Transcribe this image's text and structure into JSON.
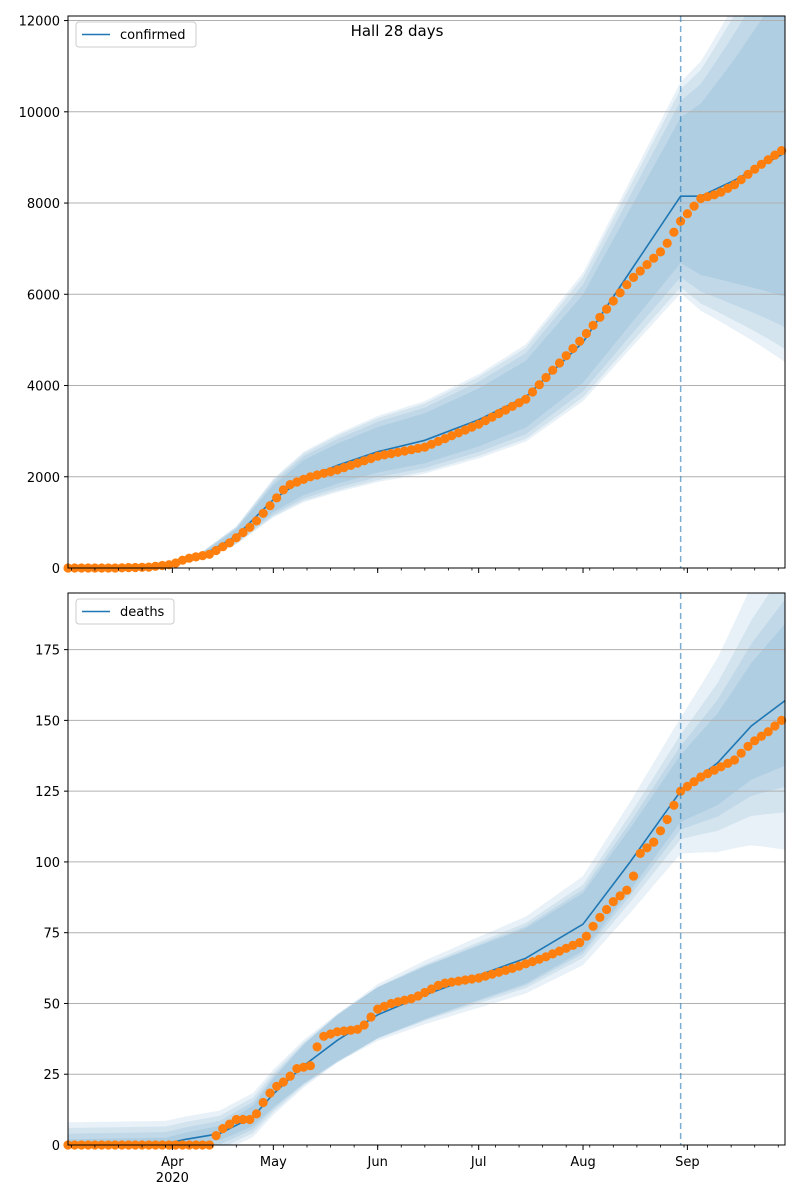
{
  "title": "Hall 28 days",
  "colors": {
    "line": "#1f77b4",
    "points": "#ff7f0e",
    "band": "#1f77b4",
    "grid": "#b0b0b0",
    "vline": "#1f77b4"
  },
  "x_axis": {
    "start": "2020-03-01",
    "end": "2020-09-30",
    "major_ticks": [
      {
        "date": "2020-04-01",
        "label": "Apr",
        "sublabel": "2020"
      },
      {
        "date": "2020-05-01",
        "label": "May",
        "sublabel": ""
      },
      {
        "date": "2020-06-01",
        "label": "Jun",
        "sublabel": ""
      },
      {
        "date": "2020-07-01",
        "label": "Jul",
        "sublabel": ""
      },
      {
        "date": "2020-08-01",
        "label": "Aug",
        "sublabel": ""
      },
      {
        "date": "2020-09-01",
        "label": "Sep",
        "sublabel": ""
      }
    ],
    "minor_tick_interval_days": 7,
    "forecast_start": "2020-08-30"
  },
  "chart_data": [
    {
      "type": "line",
      "legend": "confirmed",
      "legend_position": "top-left",
      "ylim": [
        0,
        12100
      ],
      "yticks": [
        0,
        2000,
        4000,
        6000,
        8000,
        10000,
        12000
      ],
      "grid": "horizontal",
      "bands_ratio": [
        0.96,
        0.9,
        0.8,
        0.66
      ],
      "model": [
        {
          "date": "2020-03-01",
          "y": 0
        },
        {
          "date": "2020-03-15",
          "y": 5
        },
        {
          "date": "2020-03-25",
          "y": 40
        },
        {
          "date": "2020-04-01",
          "y": 100
        },
        {
          "date": "2020-04-10",
          "y": 280
        },
        {
          "date": "2020-04-20",
          "y": 700
        },
        {
          "date": "2020-05-01",
          "y": 1500
        },
        {
          "date": "2020-05-10",
          "y": 1950
        },
        {
          "date": "2020-05-20",
          "y": 2250
        },
        {
          "date": "2020-06-01",
          "y": 2550
        },
        {
          "date": "2020-06-15",
          "y": 2800
        },
        {
          "date": "2020-07-01",
          "y": 3250
        },
        {
          "date": "2020-07-15",
          "y": 3750
        },
        {
          "date": "2020-08-01",
          "y": 4950
        },
        {
          "date": "2020-08-15",
          "y": 6500
        },
        {
          "date": "2020-08-30",
          "y": 8150
        },
        {
          "date": "2020-09-05",
          "y": 8150
        },
        {
          "date": "2020-09-15",
          "y": 8500
        },
        {
          "date": "2020-09-30",
          "y": 9100
        }
      ],
      "observed": [
        {
          "date": "2020-03-01",
          "y": 0
        },
        {
          "date": "2020-03-15",
          "y": 0
        },
        {
          "date": "2020-03-25",
          "y": 20
        },
        {
          "date": "2020-04-01",
          "y": 80
        },
        {
          "date": "2020-04-05",
          "y": 200
        },
        {
          "date": "2020-04-12",
          "y": 300
        },
        {
          "date": "2020-04-18",
          "y": 550
        },
        {
          "date": "2020-04-25",
          "y": 950
        },
        {
          "date": "2020-05-01",
          "y": 1450
        },
        {
          "date": "2020-05-05",
          "y": 1800
        },
        {
          "date": "2020-05-12",
          "y": 2000
        },
        {
          "date": "2020-05-20",
          "y": 2150
        },
        {
          "date": "2020-06-01",
          "y": 2450
        },
        {
          "date": "2020-06-15",
          "y": 2650
        },
        {
          "date": "2020-07-01",
          "y": 3150
        },
        {
          "date": "2020-07-15",
          "y": 3700
        },
        {
          "date": "2020-08-01",
          "y": 5050
        },
        {
          "date": "2020-08-15",
          "y": 6300
        },
        {
          "date": "2020-08-25",
          "y": 7000
        },
        {
          "date": "2020-08-30",
          "y": 7600
        },
        {
          "date": "2020-09-05",
          "y": 8100
        },
        {
          "date": "2020-09-10",
          "y": 8200
        },
        {
          "date": "2020-09-15",
          "y": 8400
        },
        {
          "date": "2020-09-22",
          "y": 8800
        },
        {
          "date": "2020-09-29",
          "y": 9150
        }
      ]
    },
    {
      "type": "line",
      "legend": "deaths",
      "legend_position": "top-left",
      "ylim": [
        0,
        195
      ],
      "yticks": [
        0,
        25,
        50,
        75,
        100,
        125,
        150,
        175
      ],
      "grid": "horizontal",
      "bands_ratio": [
        0.6,
        0.4,
        0.25,
        0.12
      ],
      "band_floor": 8,
      "model": [
        {
          "date": "2020-03-01",
          "y": 0
        },
        {
          "date": "2020-03-30",
          "y": 0.5
        },
        {
          "date": "2020-04-05",
          "y": 2
        },
        {
          "date": "2020-04-15",
          "y": 4
        },
        {
          "date": "2020-04-25",
          "y": 10
        },
        {
          "date": "2020-05-01",
          "y": 18
        },
        {
          "date": "2020-05-10",
          "y": 28
        },
        {
          "date": "2020-05-20",
          "y": 37
        },
        {
          "date": "2020-06-01",
          "y": 46
        },
        {
          "date": "2020-06-15",
          "y": 53
        },
        {
          "date": "2020-07-01",
          "y": 60
        },
        {
          "date": "2020-07-15",
          "y": 66
        },
        {
          "date": "2020-08-01",
          "y": 78
        },
        {
          "date": "2020-08-15",
          "y": 100
        },
        {
          "date": "2020-08-30",
          "y": 125
        },
        {
          "date": "2020-09-10",
          "y": 135
        },
        {
          "date": "2020-09-20",
          "y": 148
        },
        {
          "date": "2020-09-30",
          "y": 157
        }
      ],
      "observed": [
        {
          "date": "2020-03-01",
          "y": 0
        },
        {
          "date": "2020-04-12",
          "y": 0
        },
        {
          "date": "2020-04-15",
          "y": 5
        },
        {
          "date": "2020-04-20",
          "y": 9
        },
        {
          "date": "2020-04-25",
          "y": 9
        },
        {
          "date": "2020-04-28",
          "y": 15
        },
        {
          "date": "2020-05-01",
          "y": 20
        },
        {
          "date": "2020-05-05",
          "y": 23
        },
        {
          "date": "2020-05-08",
          "y": 27
        },
        {
          "date": "2020-05-12",
          "y": 28
        },
        {
          "date": "2020-05-15",
          "y": 38
        },
        {
          "date": "2020-05-20",
          "y": 40
        },
        {
          "date": "2020-05-27",
          "y": 41
        },
        {
          "date": "2020-06-01",
          "y": 48
        },
        {
          "date": "2020-06-05",
          "y": 50
        },
        {
          "date": "2020-06-12",
          "y": 52
        },
        {
          "date": "2020-06-20",
          "y": 57
        },
        {
          "date": "2020-07-01",
          "y": 59
        },
        {
          "date": "2020-07-10",
          "y": 62
        },
        {
          "date": "2020-07-20",
          "y": 66
        },
        {
          "date": "2020-08-01",
          "y": 72
        },
        {
          "date": "2020-08-05",
          "y": 79
        },
        {
          "date": "2020-08-10",
          "y": 86
        },
        {
          "date": "2020-08-15",
          "y": 91
        },
        {
          "date": "2020-08-18",
          "y": 103
        },
        {
          "date": "2020-08-22",
          "y": 107
        },
        {
          "date": "2020-08-26",
          "y": 115
        },
        {
          "date": "2020-08-30",
          "y": 125
        },
        {
          "date": "2020-09-05",
          "y": 130
        },
        {
          "date": "2020-09-10",
          "y": 133
        },
        {
          "date": "2020-09-15",
          "y": 136
        },
        {
          "date": "2020-09-20",
          "y": 142
        },
        {
          "date": "2020-09-25",
          "y": 146
        },
        {
          "date": "2020-09-30",
          "y": 151
        }
      ]
    }
  ]
}
